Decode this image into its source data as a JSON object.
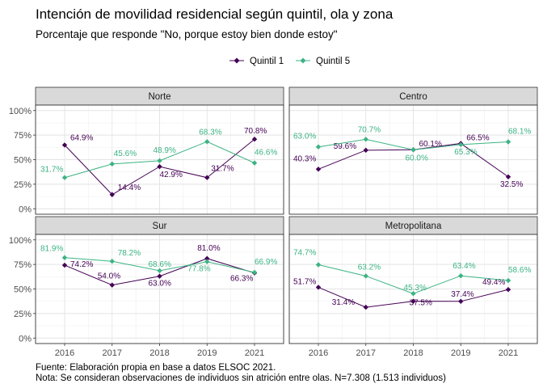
{
  "chart_data": {
    "type": "line",
    "title": "Intención de movilidad residencial según quintil, ola y zona",
    "subtitle": "Porcentaje que responde \"No, porque estoy bien donde estoy\"",
    "caption_lines": [
      "Fuente: Elaboración propia en base a datos ELSOC 2021.",
      "Nota: Se consideran observaciones de individuos sin atrición entre olas. N=7.308 (1.513 individuos)"
    ],
    "legend_position": "top",
    "grid": true,
    "x": [
      "2016",
      "2017",
      "2018",
      "2019",
      "2021"
    ],
    "y_ticks": [
      "0%",
      "25%",
      "50%",
      "75%",
      "100%"
    ],
    "ylim": [
      0,
      100
    ],
    "series_meta": [
      {
        "name": "Quintil 1",
        "color": "#440154",
        "marker": "diamond"
      },
      {
        "name": "Quintil 5",
        "color": "#3CB383",
        "marker": "diamond"
      }
    ],
    "panels": [
      {
        "name": "Norte",
        "series": [
          {
            "name": "Quintil 1",
            "values": [
              64.9,
              14.4,
              42.9,
              31.7,
              70.8
            ],
            "labels": [
              "64.9%",
              "14.4%",
              "42.9%",
              "31.7%",
              "70.8%"
            ]
          },
          {
            "name": "Quintil 5",
            "values": [
              31.7,
              45.6,
              48.9,
              68.3,
              46.6
            ],
            "labels": [
              "31.7%",
              "45.6%",
              "48.9%",
              "68.3%",
              "46.6%"
            ]
          }
        ]
      },
      {
        "name": "Centro",
        "series": [
          {
            "name": "Quintil 1",
            "values": [
              40.3,
              59.6,
              60.1,
              66.5,
              32.5
            ],
            "labels": [
              "40.3%",
              "59.6%",
              "60.1%",
              "66.5%",
              "32.5%"
            ]
          },
          {
            "name": "Quintil 5",
            "values": [
              63.0,
              70.7,
              60.0,
              65.3,
              68.1
            ],
            "labels": [
              "63.0%",
              "70.7%",
              "60.0%",
              "65.3%",
              "68.1%"
            ]
          }
        ]
      },
      {
        "name": "Sur",
        "series": [
          {
            "name": "Quintil 1",
            "values": [
              74.2,
              54.0,
              63.0,
              81.0,
              66.3
            ],
            "labels": [
              "74.2%",
              "54.0%",
              "63.0%",
              "81.0%",
              "66.3%"
            ]
          },
          {
            "name": "Quintil 5",
            "values": [
              81.9,
              78.2,
              68.6,
              77.8,
              66.9
            ],
            "labels": [
              "81.9%",
              "78.2%",
              "68.6%",
              "77.8%",
              "66.9%"
            ]
          }
        ]
      },
      {
        "name": "Metropolitana",
        "series": [
          {
            "name": "Quintil 1",
            "values": [
              51.7,
              31.4,
              37.5,
              37.4,
              49.4
            ],
            "labels": [
              "51.7%",
              "31.4%",
              "37.5%",
              "37.4%",
              "49.4%"
            ]
          },
          {
            "name": "Quintil 5",
            "values": [
              74.7,
              63.2,
              45.3,
              63.4,
              58.6
            ],
            "labels": [
              "74.7%",
              "63.2%",
              "45.3%",
              "63.4%",
              "58.6%"
            ]
          }
        ]
      }
    ]
  }
}
